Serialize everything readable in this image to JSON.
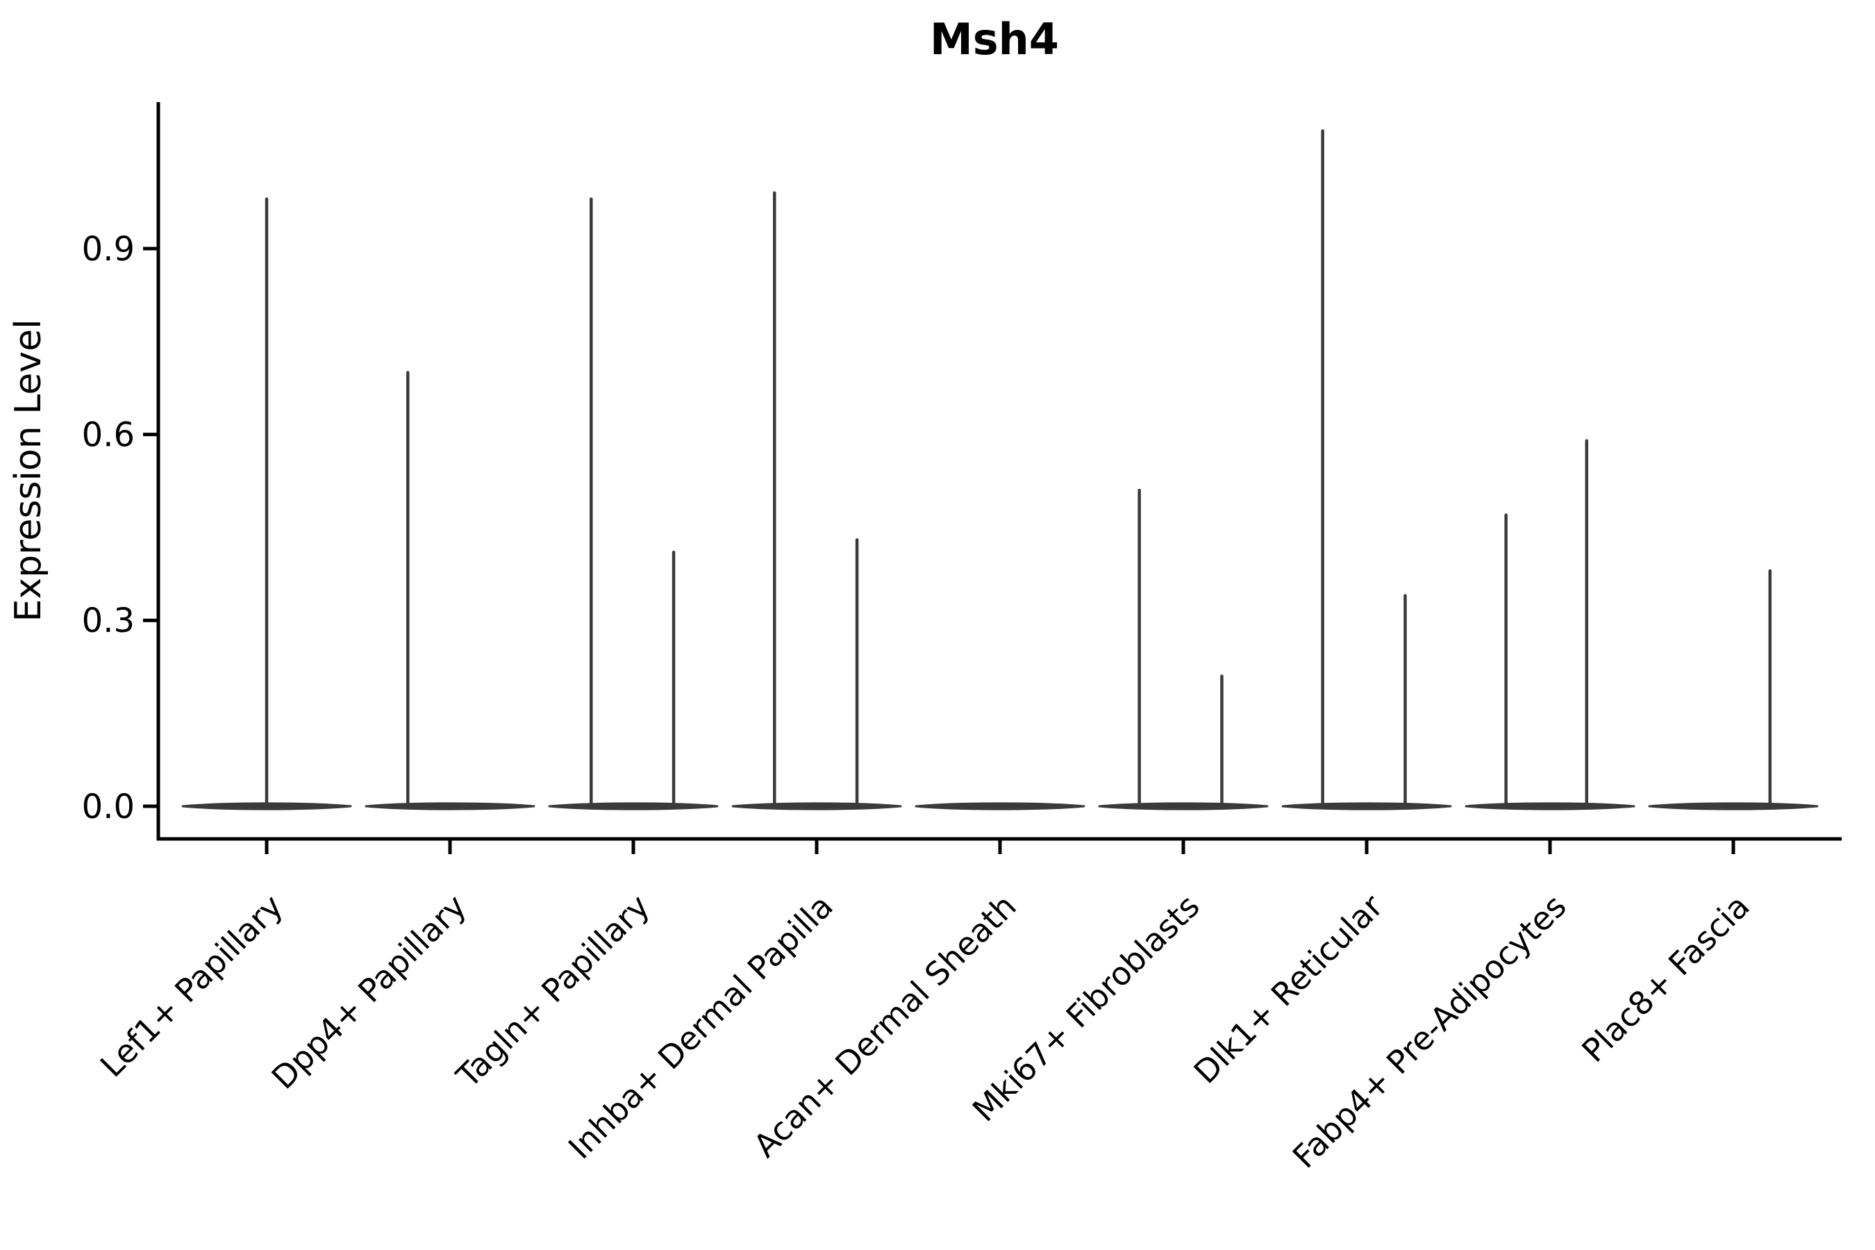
{
  "figure": {
    "title": "Msh4",
    "y_axis_label": "Expression Level"
  },
  "chart_data": {
    "type": "violin",
    "title": "Msh4",
    "xlabel": "",
    "ylabel": "Expression Level",
    "grid": false,
    "legend": "none",
    "x_tick_angle_deg": 45,
    "ylim": [
      -0.05,
      1.14
    ],
    "y_ticks": [
      {
        "value": 0.0,
        "label": "0.0"
      },
      {
        "value": 0.3,
        "label": "0.3"
      },
      {
        "value": 0.6,
        "label": "0.6"
      },
      {
        "value": 0.9,
        "label": "0.9"
      }
    ],
    "colors": {
      "violin": "#3a3a3a",
      "axis": "#000000",
      "text": "#000000"
    },
    "categories": [
      "Lef1+ Papillary",
      "Dpp4+ Papillary",
      "Tagln+ Papillary",
      "Inhba+ Dermal Papilla",
      "Acan+ Dermal Sheath",
      "Mki67+ Fibroblasts",
      "Dlk1+ Reticular",
      "Fabp4+ Pre-Adipocytes",
      "Plac8+ Fascia"
    ],
    "series": [
      {
        "category": "Lef1+ Papillary",
        "base_value": 0,
        "spikes": [
          {
            "offset": 0.0,
            "max_expression": 0.98
          }
        ]
      },
      {
        "category": "Dpp4+ Papillary",
        "base_value": 0,
        "spikes": [
          {
            "offset": -0.23,
            "max_expression": 0.7
          }
        ]
      },
      {
        "category": "Tagln+ Papillary",
        "base_value": 0,
        "spikes": [
          {
            "offset": -0.23,
            "max_expression": 0.98
          },
          {
            "offset": 0.22,
            "max_expression": 0.41
          }
        ]
      },
      {
        "category": "Inhba+ Dermal Papilla",
        "base_value": 0,
        "spikes": [
          {
            "offset": -0.23,
            "max_expression": 0.99
          },
          {
            "offset": 0.22,
            "max_expression": 0.43
          }
        ]
      },
      {
        "category": "Acan+ Dermal Sheath",
        "base_value": 0,
        "spikes": []
      },
      {
        "category": "Mki67+ Fibroblasts",
        "base_value": 0,
        "spikes": [
          {
            "offset": -0.24,
            "max_expression": 0.51
          },
          {
            "offset": 0.21,
            "max_expression": 0.21
          }
        ]
      },
      {
        "category": "Dlk1+ Reticular",
        "base_value": 0,
        "spikes": [
          {
            "offset": -0.24,
            "max_expression": 1.09
          },
          {
            "offset": 0.21,
            "max_expression": 0.34
          }
        ]
      },
      {
        "category": "Fabp4+ Pre-Adipocytes",
        "base_value": 0,
        "spikes": [
          {
            "offset": -0.24,
            "max_expression": 0.47
          },
          {
            "offset": 0.2,
            "max_expression": 0.59
          }
        ]
      },
      {
        "category": "Plac8+ Fascia",
        "base_value": 0,
        "spikes": [
          {
            "offset": 0.2,
            "max_expression": 0.38
          }
        ]
      }
    ]
  }
}
